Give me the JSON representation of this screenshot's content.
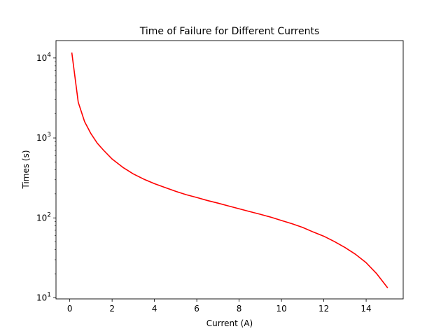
{
  "chart_data": {
    "type": "line",
    "title": "Time of Failure for Different Currents",
    "xlabel": "Current (A)",
    "ylabel": "Times (s)",
    "xlim": [
      -0.65,
      15.75
    ],
    "ylim": [
      9.7,
      16500
    ],
    "yscale": "log",
    "grid": false,
    "x_ticks": [
      0,
      2,
      4,
      6,
      8,
      10,
      12,
      14
    ],
    "x_tick_labels": [
      "0",
      "2",
      "4",
      "6",
      "8",
      "10",
      "12",
      "14"
    ],
    "y_ticks": [
      10,
      100,
      1000,
      10000
    ],
    "y_tick_labels": [
      {
        "base": "10",
        "exp": "1"
      },
      {
        "base": "10",
        "exp": "2"
      },
      {
        "base": "10",
        "exp": "3"
      },
      {
        "base": "10",
        "exp": "4"
      }
    ],
    "series": [
      {
        "color": "#ff0000",
        "x": [
          0.1,
          0.4,
          0.7,
          1.0,
          1.3,
          1.6,
          2.0,
          2.5,
          3.0,
          3.5,
          4.0,
          4.5,
          5.0,
          5.5,
          6.0,
          6.5,
          7.0,
          7.5,
          8.0,
          8.5,
          9.0,
          9.5,
          10.0,
          10.5,
          11.0,
          11.5,
          12.0,
          12.5,
          13.0,
          13.5,
          14.0,
          14.5,
          15.0
        ],
        "y": [
          11500,
          2800,
          1600,
          1130,
          860,
          700,
          545,
          430,
          355,
          305,
          268,
          240,
          215,
          195,
          180,
          165,
          153,
          141,
          130,
          120,
          111,
          102,
          92.8,
          84.5,
          76,
          66.6,
          59,
          50.6,
          42.6,
          35,
          27.5,
          20,
          13.5
        ]
      }
    ]
  }
}
